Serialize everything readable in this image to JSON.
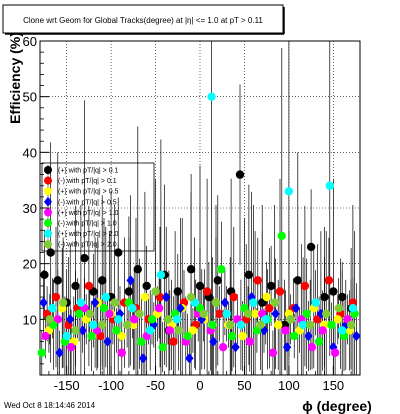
{
  "title": "Clone wrt Geom for Global Tracks(degree) at |η| <= 1.0 at pT > 0.11",
  "timestamp": "Wed Oct  8 18:14:46 2014",
  "colors": {
    "frame": "#000000",
    "grid": "#000000",
    "background": "#ffffff"
  },
  "chart_data": {
    "type": "scatter",
    "xlabel": "ϕ (degree)",
    "ylabel": "Efficiency (%)",
    "xlim": [
      -180,
      180
    ],
    "ylim": [
      0,
      60
    ],
    "x_ticks": [
      -150,
      -100,
      -50,
      0,
      50,
      100,
      150
    ],
    "y_ticks": [
      0,
      10,
      20,
      30,
      40,
      50,
      60
    ],
    "grid": true,
    "legend_position": "left",
    "series": [
      {
        "name": "(+) with pT/|q| > 0.1",
        "color": "#000000",
        "marker": "circle",
        "points": [
          [
            -175,
            18
          ],
          [
            -168,
            22
          ],
          [
            -160,
            17
          ],
          [
            -150,
            13
          ],
          [
            -140,
            16
          ],
          [
            -130,
            21
          ],
          [
            -120,
            15
          ],
          [
            -110,
            17
          ],
          [
            -100,
            14
          ],
          [
            -92,
            22
          ],
          [
            -80,
            15
          ],
          [
            -70,
            19
          ],
          [
            -60,
            16
          ],
          [
            -40,
            18
          ],
          [
            -35,
            8
          ],
          [
            -25,
            15
          ],
          [
            -10,
            19
          ],
          [
            0,
            16
          ],
          [
            10,
            14
          ],
          [
            20,
            17
          ],
          [
            35,
            15
          ],
          [
            45,
            36
          ],
          [
            55,
            18
          ],
          [
            70,
            13
          ],
          [
            80,
            16
          ],
          [
            95,
            9
          ],
          [
            110,
            17
          ],
          [
            125,
            23
          ],
          [
            140,
            14
          ],
          [
            150,
            15
          ],
          [
            160,
            14
          ],
          [
            170,
            12
          ]
        ]
      },
      {
        "name": "(-) with pT/|q| > 0.1",
        "color": "#ff0000",
        "marker": "circle",
        "points": [
          [
            -172,
            11
          ],
          [
            -162,
            14
          ],
          [
            -148,
            9
          ],
          [
            -138,
            12
          ],
          [
            -125,
            16
          ],
          [
            -112,
            7
          ],
          [
            -98,
            10
          ],
          [
            -85,
            13
          ],
          [
            -72,
            12
          ],
          [
            -58,
            10
          ],
          [
            -45,
            14
          ],
          [
            -30,
            6
          ],
          [
            -18,
            13
          ],
          [
            -5,
            9
          ],
          [
            8,
            15
          ],
          [
            22,
            11
          ],
          [
            38,
            14
          ],
          [
            52,
            10
          ],
          [
            65,
            17
          ],
          [
            78,
            12
          ],
          [
            90,
            15
          ],
          [
            105,
            12
          ],
          [
            118,
            16
          ],
          [
            132,
            10
          ],
          [
            145,
            17
          ],
          [
            158,
            11
          ],
          [
            172,
            13
          ]
        ]
      },
      {
        "name": "(+) with pT/|q| > 0.5",
        "color": "#ffff00",
        "marker": "circle",
        "points": [
          [
            -170,
            8
          ],
          [
            -155,
            12
          ],
          [
            -142,
            6
          ],
          [
            -128,
            10
          ],
          [
            -115,
            13
          ],
          [
            -100,
            11
          ],
          [
            -88,
            7
          ],
          [
            -75,
            9
          ],
          [
            -62,
            14
          ],
          [
            -48,
            11
          ],
          [
            -32,
            9
          ],
          [
            -20,
            12
          ],
          [
            -8,
            8
          ],
          [
            5,
            10
          ],
          [
            18,
            13
          ],
          [
            32,
            9
          ],
          [
            48,
            7
          ],
          [
            62,
            11
          ],
          [
            75,
            14
          ],
          [
            88,
            9
          ],
          [
            100,
            11
          ],
          [
            112,
            8
          ],
          [
            128,
            12
          ],
          [
            140,
            9
          ],
          [
            155,
            10
          ],
          [
            168,
            8
          ]
        ]
      },
      {
        "name": "(-) with pT/|q| > 0.5",
        "color": "#0000ff",
        "marker": "diamond",
        "points": [
          [
            -176,
            13
          ],
          [
            -158,
            4
          ],
          [
            -146,
            10
          ],
          [
            -132,
            8
          ],
          [
            -118,
            13
          ],
          [
            -104,
            6
          ],
          [
            -90,
            11
          ],
          [
            -78,
            17
          ],
          [
            -64,
            3
          ],
          [
            -52,
            9
          ],
          [
            -38,
            14
          ],
          [
            -22,
            12
          ],
          [
            -12,
            3
          ],
          [
            2,
            10
          ],
          [
            15,
            6
          ],
          [
            28,
            13
          ],
          [
            40,
            5
          ],
          [
            58,
            14
          ],
          [
            72,
            8
          ],
          [
            85,
            11
          ],
          [
            98,
            5
          ],
          [
            108,
            12
          ],
          [
            122,
            7
          ],
          [
            136,
            11
          ],
          [
            150,
            5
          ],
          [
            164,
            9
          ],
          [
            176,
            7
          ]
        ]
      },
      {
        "name": "(+) with pT/|q| > 1.0",
        "color": "#ff00ff",
        "marker": "circle",
        "points": [
          [
            -174,
            7
          ],
          [
            -160,
            10
          ],
          [
            -145,
            5
          ],
          [
            -130,
            12
          ],
          [
            -116,
            8
          ],
          [
            -102,
            11
          ],
          [
            -88,
            4
          ],
          [
            -74,
            10
          ],
          [
            -60,
            7
          ],
          [
            -46,
            12
          ],
          [
            -34,
            8
          ],
          [
            -16,
            6
          ],
          [
            -2,
            11
          ],
          [
            12,
            8
          ],
          [
            26,
            5
          ],
          [
            42,
            10
          ],
          [
            56,
            6
          ],
          [
            70,
            11
          ],
          [
            82,
            4
          ],
          [
            96,
            8
          ],
          [
            114,
            10
          ],
          [
            126,
            5
          ],
          [
            138,
            8
          ],
          [
            152,
            4
          ],
          [
            166,
            10
          ]
        ]
      },
      {
        "name": "(-) with pT/|q| > 1.0",
        "color": "#00ff00",
        "marker": "circle",
        "points": [
          [
            -178,
            4
          ],
          [
            -165,
            9
          ],
          [
            -152,
            6
          ],
          [
            -136,
            11
          ],
          [
            -122,
            7
          ],
          [
            -108,
            12
          ],
          [
            -94,
            8
          ],
          [
            -80,
            13
          ],
          [
            -66,
            6
          ],
          [
            -54,
            10
          ],
          [
            -42,
            5
          ],
          [
            -28,
            11
          ],
          [
            -14,
            7
          ],
          [
            0,
            12
          ],
          [
            14,
            9
          ],
          [
            24,
            19
          ],
          [
            36,
            7
          ],
          [
            50,
            12
          ],
          [
            64,
            8
          ],
          [
            76,
            10
          ],
          [
            92,
            25
          ],
          [
            106,
            7
          ],
          [
            120,
            11
          ],
          [
            134,
            6
          ],
          [
            148,
            9
          ],
          [
            162,
            7
          ],
          [
            174,
            11
          ]
        ]
      },
      {
        "name": "(+) with pT/|q| > 2.0",
        "color": "#00ffff",
        "marker": "circle",
        "points": [
          [
            -166,
            12
          ],
          [
            -150,
            7
          ],
          [
            -134,
            13
          ],
          [
            -120,
            9
          ],
          [
            -106,
            14
          ],
          [
            -92,
            10
          ],
          [
            -76,
            12
          ],
          [
            -56,
            8
          ],
          [
            -44,
            18
          ],
          [
            -26,
            10
          ],
          [
            -6,
            13
          ],
          [
            13,
            50
          ],
          [
            30,
            11
          ],
          [
            46,
            9
          ],
          [
            60,
            13
          ],
          [
            74,
            10
          ],
          [
            100,
            33
          ],
          [
            116,
            9
          ],
          [
            130,
            13
          ],
          [
            146,
            34
          ],
          [
            160,
            8
          ],
          [
            172,
            12
          ]
        ]
      },
      {
        "name": "(-) with pT/|q| > 2.0",
        "color": "#7fcc33",
        "marker": "circle",
        "points": [
          [
            -169,
            10
          ],
          [
            -154,
            13
          ],
          [
            -140,
            8
          ],
          [
            -124,
            11
          ],
          [
            -110,
            9
          ],
          [
            -96,
            13
          ],
          [
            -82,
            9
          ],
          [
            -68,
            11
          ],
          [
            -50,
            15
          ],
          [
            -36,
            10
          ],
          [
            -24,
            8
          ],
          [
            -10,
            14
          ],
          [
            4,
            11
          ],
          [
            18,
            13
          ],
          [
            34,
            9
          ],
          [
            54,
            11
          ],
          [
            68,
            9
          ],
          [
            84,
            13
          ],
          [
            102,
            10
          ],
          [
            124,
            9
          ],
          [
            142,
            11
          ],
          [
            156,
            12
          ],
          [
            170,
            9
          ]
        ]
      }
    ]
  }
}
